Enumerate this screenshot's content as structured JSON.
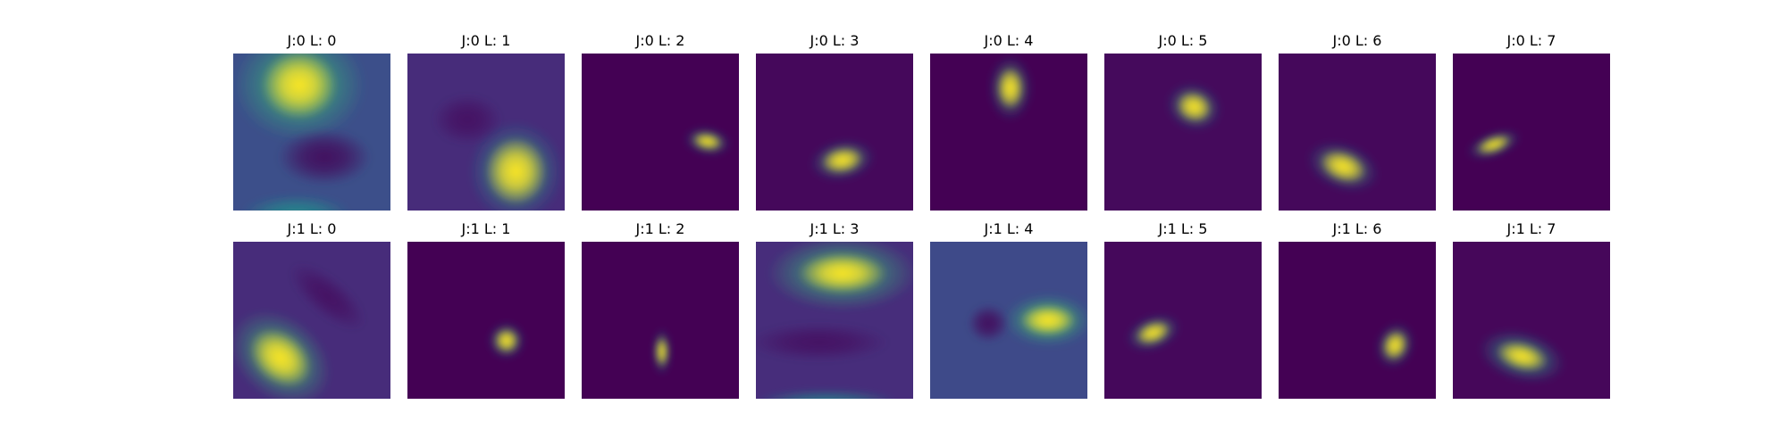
{
  "chart_data": [
    {
      "type": "heatmap",
      "title": "J:0 L: 0",
      "background": "#3c4f8a",
      "blobs": [
        {
          "cx": 0.42,
          "cy": 0.2,
          "rx": 0.24,
          "ry": 0.22,
          "angle": 0,
          "color": "#fde725",
          "strength": 1.0
        },
        {
          "cx": 0.42,
          "cy": 0.2,
          "rx": 0.42,
          "ry": 0.36,
          "angle": 0,
          "color": "#35b779",
          "strength": 0.7
        },
        {
          "cx": 0.58,
          "cy": 0.66,
          "rx": 0.3,
          "ry": 0.18,
          "angle": 0,
          "color": "#440154",
          "strength": 0.8
        },
        {
          "cx": 0.4,
          "cy": 1.02,
          "rx": 0.34,
          "ry": 0.12,
          "angle": 0,
          "color": "#21918c",
          "strength": 0.8
        }
      ]
    },
    {
      "type": "heatmap",
      "title": "J:0 L: 1",
      "background": "#472c7a",
      "blobs": [
        {
          "cx": 0.69,
          "cy": 0.75,
          "rx": 0.2,
          "ry": 0.22,
          "angle": 0,
          "color": "#fde725",
          "strength": 1.0
        },
        {
          "cx": 0.69,
          "cy": 0.75,
          "rx": 0.3,
          "ry": 0.32,
          "angle": 0,
          "color": "#21918c",
          "strength": 0.7
        },
        {
          "cx": 0.38,
          "cy": 0.42,
          "rx": 0.22,
          "ry": 0.16,
          "angle": 0,
          "color": "#440154",
          "strength": 0.6
        }
      ]
    },
    {
      "type": "heatmap",
      "title": "J:0 L: 2",
      "background": "#440154",
      "blobs": [
        {
          "cx": 0.8,
          "cy": 0.56,
          "rx": 0.1,
          "ry": 0.055,
          "angle": 10,
          "color": "#fde725",
          "strength": 1.0
        },
        {
          "cx": 0.8,
          "cy": 0.56,
          "rx": 0.15,
          "ry": 0.09,
          "angle": 10,
          "color": "#21918c",
          "strength": 0.6
        }
      ]
    },
    {
      "type": "heatmap",
      "title": "J:0 L: 3",
      "background": "#45085b",
      "blobs": [
        {
          "cx": 0.55,
          "cy": 0.68,
          "rx": 0.14,
          "ry": 0.085,
          "angle": -10,
          "color": "#fde725",
          "strength": 1.0
        },
        {
          "cx": 0.55,
          "cy": 0.68,
          "rx": 0.21,
          "ry": 0.13,
          "angle": -10,
          "color": "#21918c",
          "strength": 0.6
        }
      ]
    },
    {
      "type": "heatmap",
      "title": "J:0 L: 4",
      "background": "#440154",
      "blobs": [
        {
          "cx": 0.51,
          "cy": 0.22,
          "rx": 0.09,
          "ry": 0.14,
          "angle": 0,
          "color": "#fde725",
          "strength": 1.0
        },
        {
          "cx": 0.51,
          "cy": 0.22,
          "rx": 0.14,
          "ry": 0.21,
          "angle": 0,
          "color": "#21918c",
          "strength": 0.6
        }
      ]
    },
    {
      "type": "heatmap",
      "title": "J:0 L: 5",
      "background": "#450a5c",
      "blobs": [
        {
          "cx": 0.57,
          "cy": 0.34,
          "rx": 0.12,
          "ry": 0.1,
          "angle": 20,
          "color": "#fde725",
          "strength": 1.0
        },
        {
          "cx": 0.57,
          "cy": 0.34,
          "rx": 0.18,
          "ry": 0.15,
          "angle": 20,
          "color": "#21918c",
          "strength": 0.6
        }
      ]
    },
    {
      "type": "heatmap",
      "title": "J:0 L: 6",
      "background": "#45085b",
      "blobs": [
        {
          "cx": 0.41,
          "cy": 0.72,
          "rx": 0.16,
          "ry": 0.1,
          "angle": 20,
          "color": "#fde725",
          "strength": 1.0
        },
        {
          "cx": 0.41,
          "cy": 0.72,
          "rx": 0.24,
          "ry": 0.15,
          "angle": 20,
          "color": "#21918c",
          "strength": 0.6
        }
      ]
    },
    {
      "type": "heatmap",
      "title": "J:0 L: 7",
      "background": "#440154",
      "blobs": [
        {
          "cx": 0.26,
          "cy": 0.58,
          "rx": 0.12,
          "ry": 0.05,
          "angle": -20,
          "color": "#fde725",
          "strength": 1.0
        },
        {
          "cx": 0.26,
          "cy": 0.58,
          "rx": 0.18,
          "ry": 0.08,
          "angle": -20,
          "color": "#21918c",
          "strength": 0.6
        }
      ]
    },
    {
      "type": "heatmap",
      "title": "J:1 L: 0",
      "background": "#472c7a",
      "blobs": [
        {
          "cx": 0.3,
          "cy": 0.74,
          "rx": 0.22,
          "ry": 0.16,
          "angle": 40,
          "color": "#fde725",
          "strength": 1.0
        },
        {
          "cx": 0.3,
          "cy": 0.74,
          "rx": 0.36,
          "ry": 0.26,
          "angle": 40,
          "color": "#35b779",
          "strength": 0.7
        },
        {
          "cx": 0.6,
          "cy": 0.35,
          "rx": 0.3,
          "ry": 0.12,
          "angle": 40,
          "color": "#440154",
          "strength": 0.6
        }
      ]
    },
    {
      "type": "heatmap",
      "title": "J:1 L: 1",
      "background": "#440154",
      "blobs": [
        {
          "cx": 0.63,
          "cy": 0.63,
          "rx": 0.08,
          "ry": 0.08,
          "angle": 0,
          "color": "#fde725",
          "strength": 1.0
        },
        {
          "cx": 0.63,
          "cy": 0.63,
          "rx": 0.12,
          "ry": 0.12,
          "angle": 0,
          "color": "#21918c",
          "strength": 0.6
        }
      ]
    },
    {
      "type": "heatmap",
      "title": "J:1 L: 2",
      "background": "#440154",
      "blobs": [
        {
          "cx": 0.51,
          "cy": 0.7,
          "rx": 0.04,
          "ry": 0.1,
          "angle": 0,
          "color": "#fde725",
          "strength": 1.0
        },
        {
          "cx": 0.51,
          "cy": 0.7,
          "rx": 0.06,
          "ry": 0.15,
          "angle": 0,
          "color": "#21918c",
          "strength": 0.6
        }
      ]
    },
    {
      "type": "heatmap",
      "title": "J:1 L: 3",
      "background": "#472d7b",
      "blobs": [
        {
          "cx": 0.55,
          "cy": 0.2,
          "rx": 0.28,
          "ry": 0.13,
          "angle": 0,
          "color": "#fde725",
          "strength": 1.0
        },
        {
          "cx": 0.55,
          "cy": 0.2,
          "rx": 0.48,
          "ry": 0.24,
          "angle": 0,
          "color": "#35b779",
          "strength": 0.7
        },
        {
          "cx": 0.4,
          "cy": 0.64,
          "rx": 0.45,
          "ry": 0.12,
          "angle": 0,
          "color": "#440154",
          "strength": 0.6
        },
        {
          "cx": 0.45,
          "cy": 1.02,
          "rx": 0.45,
          "ry": 0.08,
          "angle": 0,
          "color": "#21918c",
          "strength": 0.7
        }
      ]
    },
    {
      "type": "heatmap",
      "title": "J:1 L: 4",
      "background": "#3e4a89",
      "blobs": [
        {
          "cx": 0.75,
          "cy": 0.5,
          "rx": 0.18,
          "ry": 0.1,
          "angle": 0,
          "color": "#fde725",
          "strength": 1.0
        },
        {
          "cx": 0.75,
          "cy": 0.5,
          "rx": 0.28,
          "ry": 0.17,
          "angle": 0,
          "color": "#35b779",
          "strength": 0.7
        },
        {
          "cx": 0.37,
          "cy": 0.52,
          "rx": 0.13,
          "ry": 0.12,
          "angle": 0,
          "color": "#440154",
          "strength": 0.8
        }
      ]
    },
    {
      "type": "heatmap",
      "title": "J:1 L: 5",
      "background": "#45085b",
      "blobs": [
        {
          "cx": 0.31,
          "cy": 0.58,
          "rx": 0.12,
          "ry": 0.07,
          "angle": -20,
          "color": "#fde725",
          "strength": 1.0
        },
        {
          "cx": 0.31,
          "cy": 0.58,
          "rx": 0.18,
          "ry": 0.11,
          "angle": -20,
          "color": "#21918c",
          "strength": 0.6
        }
      ]
    },
    {
      "type": "heatmap",
      "title": "J:1 L: 6",
      "background": "#440154",
      "blobs": [
        {
          "cx": 0.74,
          "cy": 0.66,
          "rx": 0.08,
          "ry": 0.1,
          "angle": 20,
          "color": "#fde725",
          "strength": 1.0
        },
        {
          "cx": 0.74,
          "cy": 0.66,
          "rx": 0.12,
          "ry": 0.15,
          "angle": 20,
          "color": "#21918c",
          "strength": 0.6
        }
      ]
    },
    {
      "type": "heatmap",
      "title": "J:1 L: 7",
      "background": "#46075a",
      "blobs": [
        {
          "cx": 0.44,
          "cy": 0.73,
          "rx": 0.17,
          "ry": 0.09,
          "angle": 15,
          "color": "#fde725",
          "strength": 1.0
        },
        {
          "cx": 0.44,
          "cy": 0.73,
          "rx": 0.28,
          "ry": 0.16,
          "angle": 15,
          "color": "#21918c",
          "strength": 0.7
        }
      ]
    }
  ]
}
